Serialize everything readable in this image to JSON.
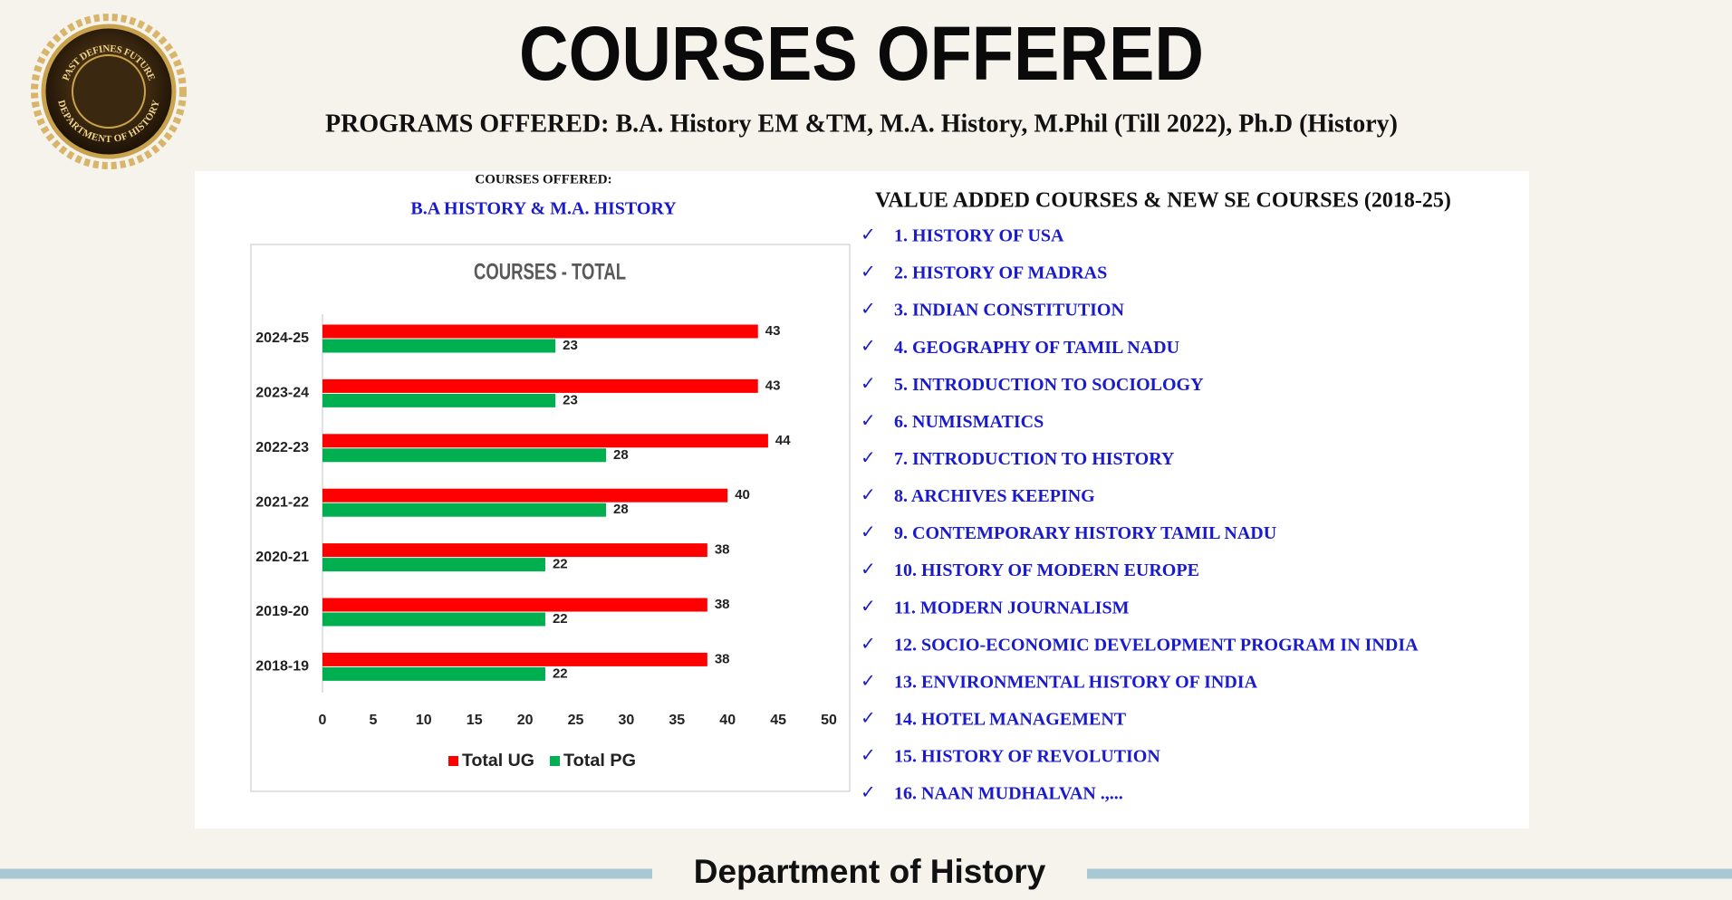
{
  "header": {
    "title": "COURSES OFFERED",
    "subtitle": "PROGRAMS OFFERED: B.A. History EM &TM, M.A. History, M.Phil (Till 2022), Ph.D (History)"
  },
  "logo": {
    "top_text": "PAST DEFINES FUTURE",
    "bottom_text": "DEPARTMENT OF HISTORY"
  },
  "left_panel": {
    "label": "COURSES OFFERED:",
    "caption": "B.A HISTORY & M.A. HISTORY"
  },
  "chart_data": {
    "type": "bar",
    "orientation": "horizontal",
    "title": "COURSES - TOTAL",
    "categories": [
      "2024-25",
      "2023-24",
      "2022-23",
      "2021-22",
      "2020-21",
      "2019-20",
      "2018-19"
    ],
    "series": [
      {
        "name": "Total UG",
        "color": "#ff0000",
        "values": [
          43,
          43,
          44,
          40,
          38,
          38,
          38
        ]
      },
      {
        "name": "Total PG",
        "color": "#00b050",
        "values": [
          23,
          23,
          28,
          28,
          22,
          22,
          22
        ]
      }
    ],
    "xlim": [
      0,
      50
    ],
    "xticks": [
      0,
      5,
      10,
      15,
      20,
      25,
      30,
      35,
      40,
      45,
      50
    ],
    "grid": false,
    "legend": "bottom",
    "data_labels": true
  },
  "list": {
    "heading": "VALUE ADDED COURSES & NEW SE COURSES (2018-25)",
    "items": [
      "1. HISTORY OF USA",
      "2. HISTORY OF MADRAS",
      "3. INDIAN CONSTITUTION",
      "4. GEOGRAPHY OF TAMIL NADU",
      "5. INTRODUCTION TO SOCIOLOGY",
      "6. NUMISMATICS",
      "7. INTRODUCTION TO HISTORY",
      "8. ARCHIVES KEEPING",
      "9. CONTEMPORARY HISTORY TAMIL NADU",
      "10. HISTORY OF MODERN EUROPE",
      "11. MODERN JOURNALISM",
      "12. SOCIO-ECONOMIC DEVELOPMENT PROGRAM IN INDIA",
      "13. ENVIRONMENTAL HISTORY OF INDIA",
      "14.  HOTEL MANAGEMENT",
      "15.  HISTORY OF REVOLUTION",
      "16. NAAN MUDHALVAN .,..."
    ]
  },
  "footer": {
    "text": "Department of History"
  }
}
